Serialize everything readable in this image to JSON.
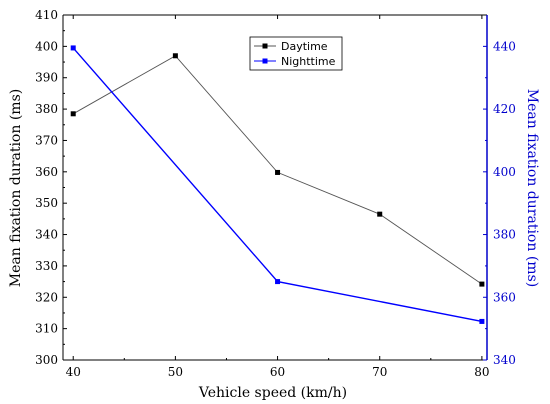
{
  "chart_data": {
    "type": "line",
    "x": [
      40,
      50,
      60,
      70,
      80
    ],
    "xlabel": "Vehicle speed (km/h)",
    "xlim": [
      39,
      80.5
    ],
    "x_ticks": [
      "40",
      "50",
      "60",
      "70",
      "80"
    ],
    "left_axis": {
      "label": "Mean fixation duration (ms)",
      "ylim": [
        300,
        410
      ],
      "ticks": [
        "300",
        "310",
        "320",
        "330",
        "340",
        "350",
        "360",
        "370",
        "380",
        "390",
        "400",
        "410"
      ],
      "color": "#000000"
    },
    "right_axis": {
      "label": "Mean fixation duration (ms)",
      "ylim": [
        340,
        450
      ],
      "ticks": [
        "340",
        "360",
        "380",
        "400",
        "420",
        "440"
      ],
      "color": "#0000cc"
    },
    "series": [
      {
        "name": "Daytime",
        "axis": "left",
        "x": [
          40,
          50,
          60,
          70,
          80
        ],
        "values": [
          378.5,
          397,
          359.8,
          346.5,
          324.2
        ],
        "color": "#555555",
        "marker_color": "#000000"
      },
      {
        "name": "Nighttime",
        "axis": "right",
        "x": [
          40,
          60,
          80
        ],
        "values": [
          439.5,
          365,
          352.3
        ],
        "color": "#0000ff",
        "marker_color": "#0000ff"
      }
    ],
    "legend_position": "top-center",
    "grid": false
  }
}
